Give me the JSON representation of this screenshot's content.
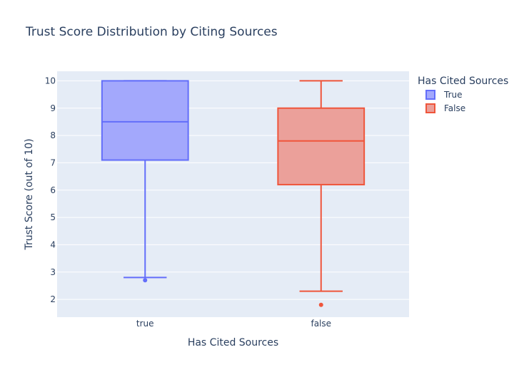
{
  "chart_data": {
    "type": "box",
    "title": "Trust Score Distribution by Citing Sources",
    "xlabel": "Has Cited Sources",
    "ylabel": "Trust Score (out of 10)",
    "ylim": [
      1.35,
      10.35
    ],
    "yticks": [
      2,
      3,
      4,
      5,
      6,
      7,
      8,
      9,
      10
    ],
    "categories": [
      "true",
      "false"
    ],
    "grid": true,
    "legend": {
      "title": "Has Cited Sources",
      "placement": "top-right",
      "entries": [
        "True",
        "False"
      ]
    },
    "series": [
      {
        "name": "True",
        "category": "true",
        "color": "#636efa",
        "fill": "#a3a8fc",
        "min": 2.8,
        "q1": 7.1,
        "median": 8.5,
        "q3": 10,
        "max": 10,
        "outliers": [
          2.7
        ]
      },
      {
        "name": "False",
        "category": "false",
        "color": "#ef553b",
        "fill": "#eba09a",
        "min": 2.3,
        "q1": 6.2,
        "median": 7.8,
        "q3": 9,
        "max": 10,
        "outliers": [
          1.8
        ]
      }
    ]
  }
}
